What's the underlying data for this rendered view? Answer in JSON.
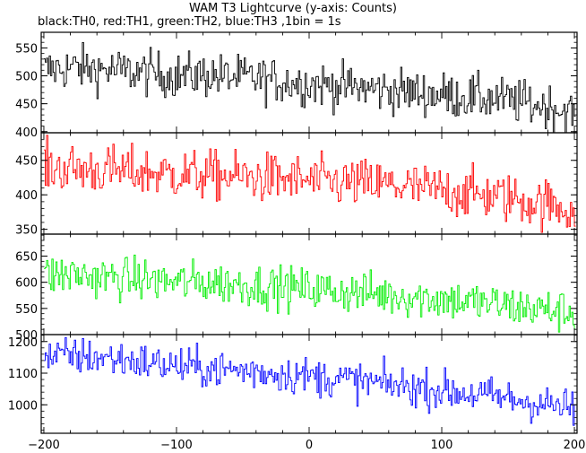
{
  "chart_data": {
    "type": "line",
    "title": "WAM T3 Lightcurve (y-axis: Counts)",
    "subtitle": "black:TH0, red:TH1, green:TH2, blue:TH3 ,1bin = 1s",
    "xlabel": "",
    "ylabel": "",
    "xlim": [
      -202,
      202
    ],
    "x_ticks": [
      -200,
      -100,
      0,
      100,
      200
    ],
    "x_tick_labels": [
      "−200",
      "−100",
      "0",
      "100",
      "200"
    ],
    "grid": false,
    "bin_seconds": 1,
    "panels": [
      {
        "name": "TH0",
        "color": "#000000",
        "ylim": [
          398,
          578
        ],
        "y_ticks": [
          400,
          450,
          500,
          550
        ],
        "x": [
          -200,
          -180,
          -160,
          -140,
          -120,
          -100,
          -80,
          -60,
          -40,
          -20,
          0,
          20,
          40,
          60,
          80,
          100,
          120,
          140,
          160,
          180,
          200
        ],
        "values": [
          510,
          515,
          512,
          508,
          505,
          500,
          502,
          498,
          495,
          490,
          486,
          482,
          478,
          474,
          470,
          466,
          462,
          458,
          452,
          445,
          432
        ],
        "noise": 20
      },
      {
        "name": "TH1",
        "color": "#ff0000",
        "ylim": [
          343,
          490
        ],
        "y_ticks": [
          350,
          400,
          450
        ],
        "x": [
          -200,
          -180,
          -160,
          -140,
          -120,
          -100,
          -80,
          -60,
          -40,
          -20,
          0,
          20,
          40,
          60,
          80,
          100,
          120,
          140,
          160,
          180,
          200
        ],
        "values": [
          440,
          438,
          436,
          434,
          432,
          430,
          428,
          427,
          425,
          423,
          420,
          418,
          416,
          414,
          410,
          406,
          402,
          398,
          392,
          386,
          378
        ],
        "noise": 18
      },
      {
        "name": "TH2",
        "color": "#00ee00",
        "ylim": [
          500,
          692
        ],
        "y_ticks": [
          500,
          550,
          600,
          650
        ],
        "x": [
          -200,
          -180,
          -160,
          -140,
          -120,
          -100,
          -80,
          -60,
          -40,
          -20,
          0,
          20,
          40,
          60,
          80,
          100,
          120,
          140,
          160,
          180,
          200
        ],
        "values": [
          612,
          615,
          610,
          607,
          604,
          600,
          600,
          597,
          594,
          590,
          587,
          583,
          580,
          576,
          572,
          568,
          563,
          558,
          552,
          547,
          542
        ],
        "noise": 20
      },
      {
        "name": "TH3",
        "color": "#0000ff",
        "ylim": [
          910,
          1222
        ],
        "y_ticks": [
          1000,
          1100,
          1200
        ],
        "x": [
          -200,
          -180,
          -160,
          -140,
          -120,
          -100,
          -80,
          -60,
          -40,
          -20,
          0,
          20,
          40,
          60,
          80,
          100,
          120,
          140,
          160,
          180,
          200
        ],
        "values": [
          1150,
          1155,
          1150,
          1142,
          1132,
          1122,
          1115,
          1110,
          1105,
          1098,
          1090,
          1082,
          1073,
          1064,
          1055,
          1045,
          1035,
          1025,
          1012,
          1000,
          985
        ],
        "noise": 30
      }
    ]
  }
}
